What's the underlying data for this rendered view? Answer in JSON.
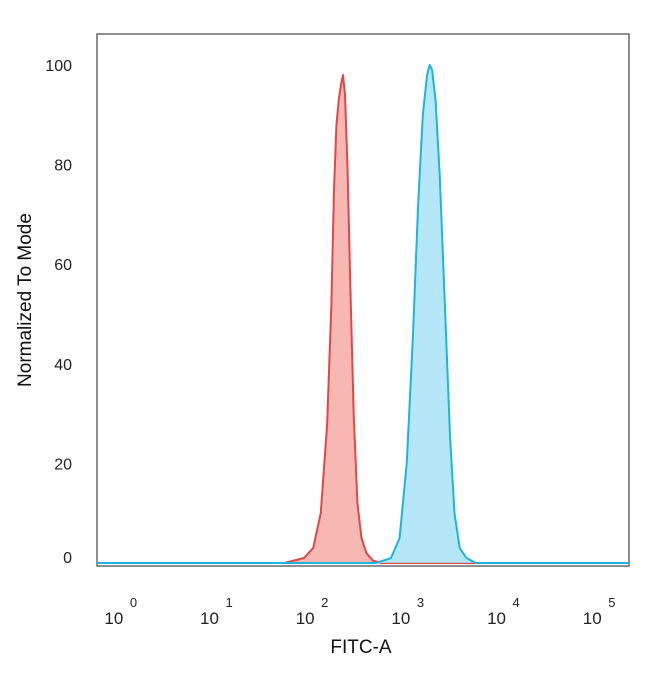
{
  "chart_data": {
    "type": "area",
    "title": "",
    "xlabel": "FITC-A",
    "ylabel": "Normalized To Mode",
    "x_scale": "log",
    "xlim": [
      0.55,
      200000
    ],
    "ylim": [
      0,
      106
    ],
    "yticks": [
      0,
      20,
      40,
      60,
      80,
      100
    ],
    "xticks": [
      {
        "base": "10",
        "exp": "0",
        "value": 1
      },
      {
        "base": "10",
        "exp": "1",
        "value": 10
      },
      {
        "base": "10",
        "exp": "2",
        "value": 100
      },
      {
        "base": "10",
        "exp": "3",
        "value": 1000
      },
      {
        "base": "10",
        "exp": "4",
        "value": 10000
      },
      {
        "base": "10",
        "exp": "5",
        "value": 100000
      }
    ],
    "grid": false,
    "legend": "none",
    "series": [
      {
        "color": "#e04848",
        "fill": "#f6aaa6",
        "points": [
          {
            "x": 0.55,
            "y": 0
          },
          {
            "x": 50,
            "y": 0
          },
          {
            "x": 80,
            "y": 1
          },
          {
            "x": 100,
            "y": 3
          },
          {
            "x": 120,
            "y": 10
          },
          {
            "x": 140,
            "y": 28
          },
          {
            "x": 155,
            "y": 52
          },
          {
            "x": 165,
            "y": 75
          },
          {
            "x": 175,
            "y": 88
          },
          {
            "x": 185,
            "y": 93
          },
          {
            "x": 195,
            "y": 96
          },
          {
            "x": 205,
            "y": 98
          },
          {
            "x": 215,
            "y": 94
          },
          {
            "x": 228,
            "y": 80
          },
          {
            "x": 245,
            "y": 55
          },
          {
            "x": 265,
            "y": 30
          },
          {
            "x": 290,
            "y": 12
          },
          {
            "x": 320,
            "y": 5
          },
          {
            "x": 360,
            "y": 2
          },
          {
            "x": 420,
            "y": 0.5
          },
          {
            "x": 520,
            "y": 0
          },
          {
            "x": 200000,
            "y": 0
          }
        ]
      },
      {
        "color": "#1fb4dd",
        "fill": "#a8e3f7",
        "points": [
          {
            "x": 0.55,
            "y": 0
          },
          {
            "x": 450,
            "y": 0
          },
          {
            "x": 650,
            "y": 1
          },
          {
            "x": 800,
            "y": 5
          },
          {
            "x": 950,
            "y": 20
          },
          {
            "x": 1100,
            "y": 45
          },
          {
            "x": 1250,
            "y": 72
          },
          {
            "x": 1400,
            "y": 90
          },
          {
            "x": 1550,
            "y": 98
          },
          {
            "x": 1650,
            "y": 100
          },
          {
            "x": 1750,
            "y": 99
          },
          {
            "x": 1900,
            "y": 93
          },
          {
            "x": 2100,
            "y": 78
          },
          {
            "x": 2400,
            "y": 50
          },
          {
            "x": 2700,
            "y": 25
          },
          {
            "x": 3000,
            "y": 10
          },
          {
            "x": 3400,
            "y": 3
          },
          {
            "x": 4000,
            "y": 1
          },
          {
            "x": 5000,
            "y": 0
          },
          {
            "x": 200000,
            "y": 0
          }
        ]
      }
    ]
  }
}
